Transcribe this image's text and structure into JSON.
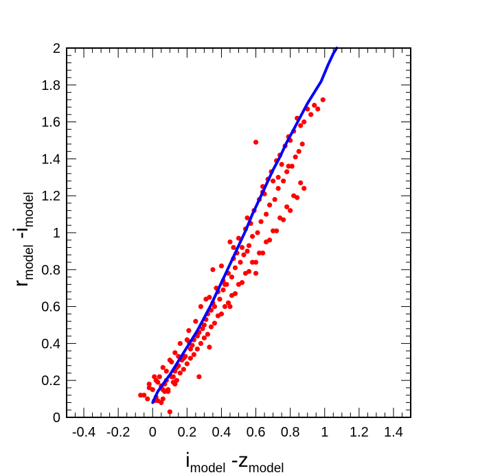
{
  "chart_data": {
    "type": "scatter",
    "xlabel": {
      "main1": "i",
      "sub1": "model",
      "main2": " -z",
      "sub2": "model"
    },
    "ylabel": {
      "main1": "r",
      "sub1": "model",
      "main2": " -i",
      "sub2": "model"
    },
    "xlim": [
      -0.5,
      1.5
    ],
    "ylim": [
      0,
      2
    ],
    "x_ticks": [
      -0.4,
      -0.2,
      0,
      0.2,
      0.4,
      0.6,
      0.8,
      1,
      1.2,
      1.4
    ],
    "x_tick_labels": [
      "-0.4",
      "-0.2",
      "0",
      "0.2",
      "0.4",
      "0.6",
      "0.8",
      "1",
      "1.2",
      "1.4"
    ],
    "y_ticks": [
      0,
      0.2,
      0.4,
      0.6,
      0.8,
      1,
      1.2,
      1.4,
      1.6,
      1.8,
      2
    ],
    "y_tick_labels": [
      "0",
      "0.2",
      "0.4",
      "0.6",
      "0.8",
      "1",
      "1.2",
      "1.4",
      "1.6",
      "1.8",
      "2"
    ],
    "colors": {
      "points": "#ff0000",
      "fit": "#0000ff",
      "frame": "#000000"
    },
    "grid": false,
    "scatter": {
      "x": [
        -0.07,
        -0.05,
        -0.03,
        -0.02,
        0.0,
        0.01,
        0.02,
        0.03,
        0.04,
        0.05,
        0.06,
        0.07,
        0.08,
        0.09,
        0.1,
        0.1,
        0.11,
        0.12,
        0.13,
        0.14,
        0.15,
        0.16,
        0.18,
        0.2,
        0.21,
        0.23,
        0.25,
        0.27,
        0.28,
        0.3,
        0.32,
        0.33,
        0.35,
        0.37,
        0.38,
        0.4,
        0.42,
        0.44,
        0.45,
        0.47,
        0.49,
        0.5,
        0.52,
        0.54,
        0.55,
        0.57,
        0.59,
        0.6,
        0.62,
        0.64,
        0.65,
        0.67,
        0.69,
        0.7,
        0.72,
        0.74,
        0.75,
        0.77,
        0.79,
        0.8,
        0.82,
        0.84,
        0.86,
        0.88,
        0.9,
        0.92,
        0.94,
        0.96,
        0.99,
        -0.02,
        0.05,
        0.02,
        0.06,
        0.08,
        0.11,
        0.13,
        0.15,
        0.17,
        0.19,
        0.22,
        0.24,
        0.26,
        0.29,
        0.31,
        0.34,
        0.36,
        0.39,
        0.41,
        0.43,
        0.46,
        0.48,
        0.51,
        0.53,
        0.56,
        0.58,
        0.61,
        0.63,
        0.66,
        0.68,
        0.71,
        0.73,
        0.76,
        0.78,
        0.81,
        0.83,
        0.85,
        0.87,
        0.03,
        0.07,
        0.12,
        0.16,
        0.2,
        0.24,
        0.28,
        0.32,
        0.36,
        0.4,
        0.44,
        0.48,
        0.52,
        0.56,
        0.6,
        0.64,
        0.68,
        0.72,
        0.76,
        0.8,
        0.84,
        0.88,
        0.14,
        0.18,
        0.22,
        0.26,
        0.3,
        0.34,
        0.38,
        0.42,
        0.46,
        0.5,
        0.54,
        0.58,
        0.62,
        0.66,
        0.7,
        0.74,
        0.78,
        0.82,
        0.86,
        0.27,
        0.33,
        0.45,
        0.6,
        0.06,
        0.09,
        0.35,
        0.55,
        0.73,
        0.41,
        0.13,
        0.01,
        0.21,
        0.31,
        0.47,
        0.64,
        0.79
      ],
      "y": [
        0.12,
        0.12,
        0.1,
        0.16,
        0.15,
        0.09,
        0.11,
        0.19,
        0.22,
        0.08,
        0.27,
        0.18,
        0.25,
        0.14,
        0.03,
        0.31,
        0.3,
        0.22,
        0.35,
        0.27,
        0.33,
        0.4,
        0.32,
        0.42,
        0.47,
        0.39,
        0.52,
        0.46,
        0.6,
        0.5,
        0.56,
        0.65,
        0.62,
        0.7,
        0.68,
        0.82,
        0.72,
        0.78,
        0.95,
        0.86,
        0.89,
        0.97,
        0.92,
        1.02,
        1.08,
        1.05,
        1.12,
        1.49,
        1.18,
        1.25,
        1.21,
        1.29,
        1.33,
        1.28,
        1.39,
        1.42,
        1.37,
        1.47,
        1.52,
        1.5,
        1.55,
        1.62,
        1.58,
        1.6,
        1.67,
        1.64,
        1.69,
        1.67,
        1.72,
        0.18,
        0.17,
        0.2,
        0.15,
        0.2,
        0.22,
        0.25,
        0.28,
        0.31,
        0.33,
        0.37,
        0.42,
        0.44,
        0.48,
        0.53,
        0.58,
        0.6,
        0.64,
        0.69,
        0.72,
        0.76,
        0.81,
        0.84,
        0.88,
        0.93,
        0.98,
        1.0,
        1.06,
        1.1,
        1.15,
        1.18,
        1.24,
        1.28,
        1.33,
        1.36,
        1.41,
        1.44,
        1.48,
        0.09,
        0.14,
        0.19,
        0.24,
        0.29,
        0.34,
        0.4,
        0.45,
        0.51,
        0.56,
        0.62,
        0.67,
        0.73,
        0.79,
        0.84,
        0.89,
        0.96,
        1.01,
        1.07,
        1.12,
        1.19,
        1.24,
        0.2,
        0.26,
        0.32,
        0.37,
        0.43,
        0.49,
        0.55,
        0.6,
        0.66,
        0.72,
        0.78,
        0.84,
        0.89,
        0.95,
        1.01,
        1.08,
        1.14,
        1.2,
        1.27,
        0.22,
        0.38,
        0.6,
        0.78,
        0.1,
        0.15,
        0.8,
        0.9,
        1.3,
        0.74,
        0.18,
        0.22,
        0.41,
        0.64,
        0.92,
        1.22,
        1.36
      ]
    },
    "fit_line": {
      "x": [
        0.0,
        0.03,
        0.06,
        0.1,
        0.14,
        0.18,
        0.22,
        0.26,
        0.3,
        0.34,
        0.38,
        0.42,
        0.46,
        0.5,
        0.54,
        0.58,
        0.62,
        0.66,
        0.7,
        0.74,
        0.78,
        0.82,
        0.86,
        0.9,
        0.94,
        0.98,
        1.02,
        1.05,
        1.07
      ],
      "y": [
        0.08,
        0.14,
        0.18,
        0.23,
        0.29,
        0.35,
        0.41,
        0.47,
        0.54,
        0.61,
        0.69,
        0.77,
        0.85,
        0.93,
        1.01,
        1.1,
        1.18,
        1.26,
        1.34,
        1.41,
        1.49,
        1.56,
        1.63,
        1.7,
        1.76,
        1.82,
        1.91,
        1.97,
        2.0
      ]
    }
  }
}
